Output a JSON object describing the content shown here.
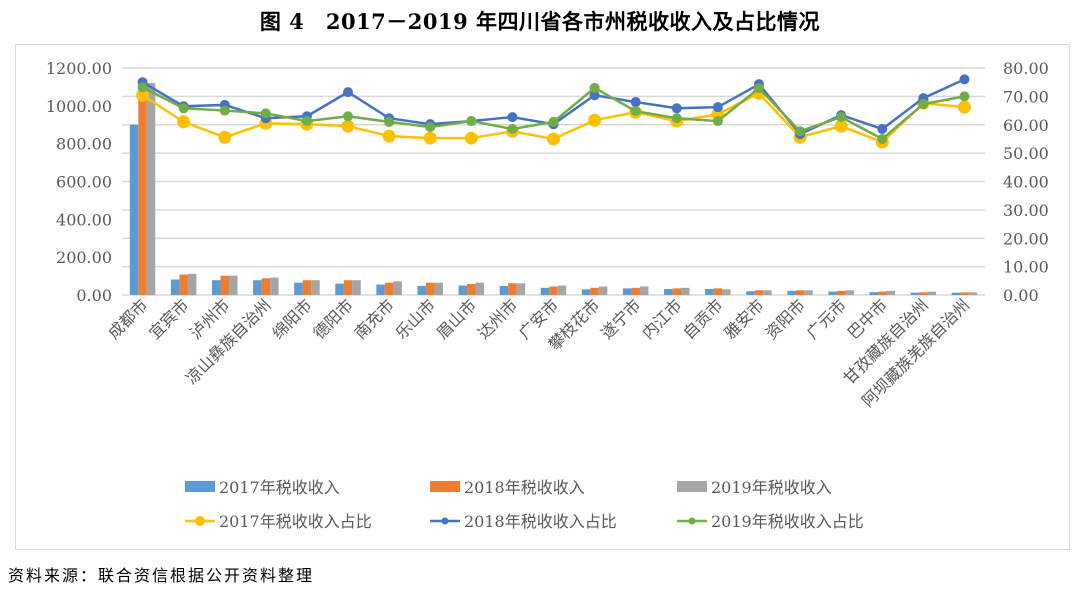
{
  "title": "图 4　2017－2019 年四川省各市州税收收入及占比情况",
  "footer": "资料来源：联合资信根据公开资料整理",
  "colors": {
    "bar2017": "#5B9BD5",
    "bar2018": "#ED7D31",
    "bar2019": "#A5A5A5",
    "line2017": "#FFC000",
    "line2018": "#4472C4",
    "line2019": "#70AD47",
    "grid": "#d9d9d9",
    "axis_text": "#595959"
  },
  "legend": [
    {
      "label": "2017年税收收入",
      "kind": "bar",
      "color": "#5B9BD5"
    },
    {
      "label": "2018年税收收入",
      "kind": "bar",
      "color": "#ED7D31"
    },
    {
      "label": "2019年税收收入",
      "kind": "bar",
      "color": "#A5A5A5"
    },
    {
      "label": "2017年税收收入占比",
      "kind": "line",
      "color": "#FFC000"
    },
    {
      "label": "2018年税收收入占比",
      "kind": "line",
      "color": "#4472C4"
    },
    {
      "label": "2019年税收收入占比",
      "kind": "line",
      "color": "#70AD47"
    }
  ],
  "chart_data": {
    "type": "bar+line",
    "title": "2017－2019 年四川省各市州税收收入及占比情况",
    "categories": [
      "成都市",
      "宜宾市",
      "泸州市",
      "凉山彝族自治州",
      "绵阳市",
      "德阳市",
      "南充市",
      "乐山市",
      "眉山市",
      "达州市",
      "广安市",
      "攀枝花市",
      "遂宁市",
      "内江市",
      "自贡市",
      "雅安市",
      "资阳市",
      "广元市",
      "巴中市",
      "甘孜藏族自治州",
      "阿坝藏族羌族自治州"
    ],
    "left_axis": {
      "label": "",
      "ylim": [
        0,
        1200
      ],
      "ticks": [
        "0.00",
        "200.00",
        "400.00",
        "600.00",
        "800.00",
        "1000.00",
        "1200.00"
      ]
    },
    "right_axis": {
      "label": "",
      "ylim": [
        0,
        80
      ],
      "ticks": [
        "0.00",
        "10.00",
        "20.00",
        "30.00",
        "40.00",
        "50.00",
        "60.00",
        "70.00",
        "80.00"
      ]
    },
    "grid": true,
    "legend_position": "bottom",
    "series": [
      {
        "name": "2017年税收收入",
        "type": "bar",
        "axis": "left",
        "values": [
          900,
          82,
          78,
          78,
          65,
          60,
          55,
          48,
          50,
          48,
          38,
          30,
          35,
          32,
          32,
          20,
          22,
          18,
          15,
          12,
          12
        ]
      },
      {
        "name": "2018年税收收入",
        "type": "bar",
        "axis": "left",
        "values": [
          1140,
          108,
          102,
          88,
          78,
          78,
          65,
          65,
          58,
          62,
          45,
          38,
          38,
          35,
          35,
          25,
          25,
          22,
          18,
          14,
          14
        ]
      },
      {
        "name": "2019年税收收入",
        "type": "bar",
        "axis": "left",
        "values": [
          1120,
          112,
          102,
          92,
          78,
          78,
          72,
          65,
          65,
          62,
          50,
          45,
          45,
          38,
          30,
          25,
          25,
          25,
          22,
          18,
          14
        ]
      },
      {
        "name": "2017年税收收入占比",
        "type": "line",
        "axis": "right",
        "values": [
          70.4,
          61.0,
          55.6,
          60.5,
          60.2,
          59.5,
          56.0,
          55.3,
          55.3,
          57.7,
          55.0,
          61.6,
          64.4,
          61.3,
          63.7,
          71.1,
          55.6,
          59.5,
          53.9,
          67.6,
          66.2
        ]
      },
      {
        "name": "2018年税收收入占比",
        "type": "line",
        "axis": "right",
        "values": [
          75.0,
          66.5,
          67.0,
          62.3,
          63.0,
          71.5,
          62.3,
          60.2,
          61.3,
          62.7,
          60.2,
          70.4,
          68.0,
          65.8,
          66.2,
          74.3,
          56.7,
          63.4,
          58.5,
          69.4,
          76.0
        ]
      },
      {
        "name": "2019年税收收入占比",
        "type": "line",
        "axis": "right",
        "values": [
          73.2,
          65.8,
          65.0,
          64.0,
          61.3,
          63.0,
          61.0,
          59.2,
          61.3,
          58.5,
          61.0,
          73.0,
          64.8,
          62.3,
          61.3,
          72.9,
          57.7,
          62.7,
          55.0,
          67.3,
          70.0
        ]
      }
    ]
  }
}
